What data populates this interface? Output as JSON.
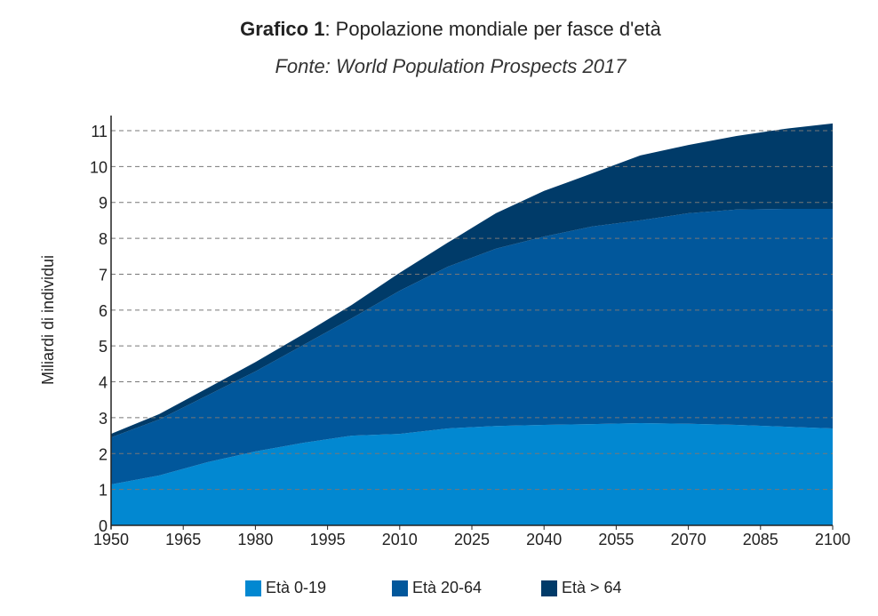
{
  "title_bold": "Grafico 1",
  "title_rest": ": Popolazione mondiale per fasce d'età",
  "subtitle": "Fonte: World Population Prospects 2017",
  "chart_data": {
    "type": "area",
    "stacked": true,
    "title": "Grafico 1: Popolazione mondiale per fasce d'età",
    "subtitle": "Fonte: World Population Prospects 2017",
    "xlabel": "",
    "ylabel": "Miliardi di individui",
    "xlim": [
      1950,
      2100
    ],
    "ylim": [
      0,
      11.4
    ],
    "x_ticks": [
      "1950",
      "1965",
      "1980",
      "1995",
      "2010",
      "2025",
      "2040",
      "2055",
      "2070",
      "2085",
      "2100"
    ],
    "y_ticks": [
      "0",
      "1",
      "2",
      "3",
      "4",
      "5",
      "6",
      "7",
      "8",
      "9",
      "10",
      "11"
    ],
    "grid": "horizontal dashed",
    "legend": "bottom",
    "x": [
      1950,
      1960,
      1970,
      1980,
      1990,
      2000,
      2010,
      2020,
      2030,
      2040,
      2050,
      2060,
      2070,
      2080,
      2090,
      2100
    ],
    "series": [
      {
        "name": "Età 0-19",
        "color": "#0288d1",
        "values": [
          1.14,
          1.39,
          1.76,
          2.06,
          2.3,
          2.5,
          2.55,
          2.7,
          2.77,
          2.8,
          2.82,
          2.85,
          2.83,
          2.8,
          2.75,
          2.7
        ]
      },
      {
        "name": "Età 20-64",
        "color": "#01579b",
        "values": [
          1.31,
          1.56,
          1.86,
          2.23,
          2.73,
          3.27,
          3.99,
          4.51,
          4.94,
          5.25,
          5.51,
          5.65,
          5.87,
          6.0,
          6.07,
          6.12
        ]
      },
      {
        "name": "Età > 64",
        "color": "#003b69",
        "values": [
          0.1,
          0.15,
          0.2,
          0.26,
          0.3,
          0.37,
          0.5,
          0.67,
          0.99,
          1.27,
          1.48,
          1.81,
          1.9,
          2.05,
          2.23,
          2.38
        ]
      }
    ]
  }
}
